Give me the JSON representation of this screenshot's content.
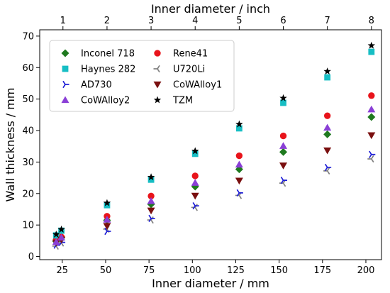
{
  "chart_data": {
    "type": "scatter",
    "xlabel": "Inner diameter / mm",
    "x2label": "Inner diameter / inch",
    "ylabel": "Wall thickness / mm",
    "xlim": [
      12,
      209
    ],
    "ylim": [
      -1,
      72
    ],
    "xticks": [
      25,
      50,
      75,
      100,
      125,
      150,
      175,
      200
    ],
    "x2ticks": [
      1,
      2,
      3,
      4,
      5,
      6,
      7,
      8
    ],
    "yticks": [
      0,
      10,
      20,
      30,
      40,
      50,
      60,
      70
    ],
    "grid": false,
    "legend_position": "top-left",
    "legend_columns": 2,
    "series": [
      {
        "name": "Inconel 718",
        "marker": "diamond",
        "color": "#1f7a1f",
        "points": [
          [
            21.5,
            4.8
          ],
          [
            24.5,
            6.0
          ],
          [
            50.8,
            11.5
          ],
          [
            76.2,
            16.6
          ],
          [
            101.6,
            22.2
          ],
          [
            127,
            27.7
          ],
          [
            152.4,
            33.2
          ],
          [
            177.8,
            38.8
          ],
          [
            203.2,
            44.3
          ]
        ]
      },
      {
        "name": "Rene41",
        "marker": "circle",
        "color": "#e8141b",
        "points": [
          [
            21.5,
            5.3
          ],
          [
            24.5,
            6.2
          ],
          [
            50.8,
            12.8
          ],
          [
            76.2,
            19.2
          ],
          [
            101.6,
            25.6
          ],
          [
            127,
            32.0
          ],
          [
            152.4,
            38.3
          ],
          [
            177.8,
            44.7
          ],
          [
            203.2,
            51.1
          ]
        ]
      },
      {
        "name": "Haynes 282",
        "marker": "square",
        "color": "#17bec4",
        "points": [
          [
            21.5,
            6.7
          ],
          [
            24.5,
            8.2
          ],
          [
            50.8,
            16.3
          ],
          [
            76.2,
            24.4
          ],
          [
            101.6,
            32.6
          ],
          [
            127,
            40.7
          ],
          [
            152.4,
            48.8
          ],
          [
            177.8,
            56.9
          ],
          [
            203.2,
            65.0
          ]
        ]
      },
      {
        "name": "U720Li",
        "marker": "tri_left",
        "color": "#808080",
        "points": [
          [
            21.5,
            3.3
          ],
          [
            24.5,
            4.3
          ],
          [
            50.8,
            8.7
          ],
          [
            76.2,
            11.6
          ],
          [
            101.6,
            15.6
          ],
          [
            127,
            19.4
          ],
          [
            152.4,
            23.3
          ],
          [
            177.8,
            27.2
          ],
          [
            203.2,
            31.0
          ]
        ]
      },
      {
        "name": "AD730",
        "marker": "tri_right",
        "color": "#1f1fd6",
        "points": [
          [
            21.5,
            3.6
          ],
          [
            24.5,
            4.5
          ],
          [
            50.8,
            8.0
          ],
          [
            76.2,
            12.1
          ],
          [
            101.6,
            16.1
          ],
          [
            127,
            20.2
          ],
          [
            152.4,
            24.2
          ],
          [
            177.8,
            28.3
          ],
          [
            203.2,
            32.4
          ]
        ]
      },
      {
        "name": "CoWAlloy1",
        "marker": "triangle_down",
        "color": "#7a0f0f",
        "points": [
          [
            21.5,
            4.4
          ],
          [
            24.5,
            5.4
          ],
          [
            50.8,
            9.7
          ],
          [
            76.2,
            14.6
          ],
          [
            101.6,
            19.3
          ],
          [
            127,
            24.1
          ],
          [
            152.4,
            28.9
          ],
          [
            177.8,
            33.7
          ],
          [
            203.2,
            38.5
          ]
        ]
      },
      {
        "name": "CoWAlloy2",
        "marker": "triangle_up",
        "color": "#8a3fd6",
        "points": [
          [
            21.5,
            4.6
          ],
          [
            24.5,
            6.0
          ],
          [
            50.8,
            11.7
          ],
          [
            76.2,
            17.6
          ],
          [
            101.6,
            23.4
          ],
          [
            127,
            29.2
          ],
          [
            152.4,
            35.1
          ],
          [
            177.8,
            40.9
          ],
          [
            203.2,
            46.7
          ]
        ]
      },
      {
        "name": "TZM",
        "marker": "star",
        "color": "#000000",
        "points": [
          [
            21.5,
            7.0
          ],
          [
            24.5,
            8.6
          ],
          [
            50.8,
            17.0
          ],
          [
            76.2,
            25.2
          ],
          [
            101.6,
            33.5
          ],
          [
            127,
            42.0
          ],
          [
            152.4,
            50.3
          ],
          [
            177.8,
            58.8
          ],
          [
            203.2,
            67.0
          ]
        ]
      }
    ]
  }
}
